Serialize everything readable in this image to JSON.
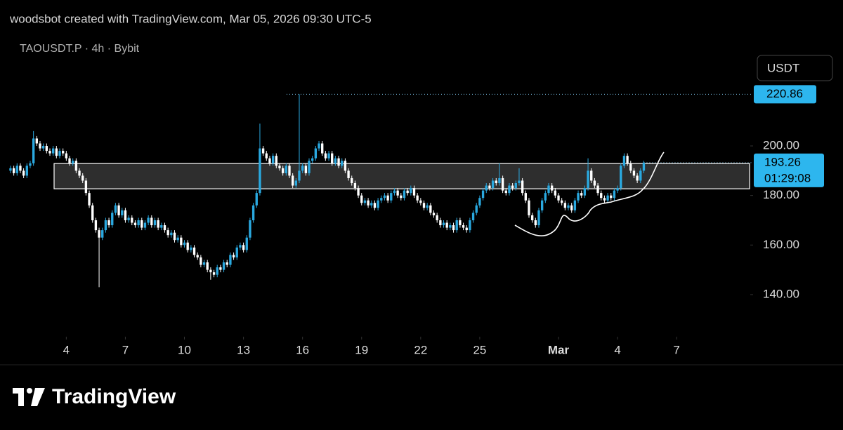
{
  "header": {
    "byline": "woodsbot created with TradingView.com, Mar 05, 2026 09:30 UTC-5",
    "symbol": "TAOUSDT.P · 4h · Bybit",
    "currency_button": "USDT"
  },
  "chart_data": {
    "type": "candlestick",
    "up_color": "#2aa9e0",
    "down_color": "#ffffff",
    "ylim": [
      123,
      232
    ],
    "xlim": [
      -3.2,
      224.8
    ],
    "yticks": [
      {
        "value": 140,
        "label": "140.00"
      },
      {
        "value": 160,
        "label": "160.00"
      },
      {
        "value": 180,
        "label": "180.00"
      },
      {
        "value": 200,
        "label": "200.00"
      }
    ],
    "xticks": [
      {
        "value": 17,
        "label": "4"
      },
      {
        "value": 35,
        "label": "7"
      },
      {
        "value": 53,
        "label": "10"
      },
      {
        "value": 71,
        "label": "13"
      },
      {
        "value": 89,
        "label": "16"
      },
      {
        "value": 107,
        "label": "19"
      },
      {
        "value": 125,
        "label": "22"
      },
      {
        "value": 143,
        "label": "25"
      },
      {
        "value": 167,
        "label": "Mar"
      },
      {
        "value": 185,
        "label": "4"
      },
      {
        "value": 203,
        "label": "7"
      }
    ],
    "high_marker": {
      "value": 220.86,
      "label": "220.86"
    },
    "last_price": {
      "value": 193.26,
      "label": "193.26"
    },
    "countdown": "01:29:08",
    "zone": [
      182.7,
      192.9
    ],
    "candles": [
      [
        190,
        192,
        189,
        191
      ],
      [
        191,
        192,
        188,
        189
      ],
      [
        189,
        193,
        188,
        192
      ],
      [
        192,
        193,
        189,
        190
      ],
      [
        190,
        191,
        187,
        188
      ],
      [
        188,
        193,
        187,
        192
      ],
      [
        192,
        194,
        191,
        193
      ],
      [
        193,
        206,
        192,
        203
      ],
      [
        203,
        204,
        200,
        201
      ],
      [
        201,
        202,
        198,
        199
      ],
      [
        199,
        201,
        198,
        200
      ],
      [
        200,
        201,
        197,
        198
      ],
      [
        198,
        199,
        196,
        197
      ],
      [
        197,
        200,
        196,
        199
      ],
      [
        199,
        200,
        195,
        196
      ],
      [
        196,
        199,
        195,
        198
      ],
      [
        198,
        199,
        196,
        197
      ],
      [
        197,
        198,
        194,
        195
      ],
      [
        195,
        196,
        192,
        193
      ],
      [
        193,
        195,
        192,
        194
      ],
      [
        194,
        195,
        189,
        190
      ],
      [
        190,
        191,
        187,
        188
      ],
      [
        188,
        189,
        185,
        186
      ],
      [
        186,
        187,
        180,
        181
      ],
      [
        181,
        182,
        175,
        176
      ],
      [
        176,
        177,
        169,
        170
      ],
      [
        170,
        171,
        165,
        166
      ],
      [
        166,
        167,
        143,
        163
      ],
      [
        163,
        167,
        162,
        166
      ],
      [
        166,
        171,
        165,
        170
      ],
      [
        170,
        171,
        167,
        168
      ],
      [
        168,
        174,
        167,
        173
      ],
      [
        173,
        177,
        172,
        176
      ],
      [
        176,
        177,
        171,
        172
      ],
      [
        172,
        175,
        171,
        174
      ],
      [
        174,
        175,
        169,
        170
      ],
      [
        170,
        172,
        169,
        171
      ],
      [
        171,
        172,
        168,
        169
      ],
      [
        169,
        170,
        167,
        168
      ],
      [
        168,
        171,
        167,
        170
      ],
      [
        170,
        171,
        166,
        167
      ],
      [
        167,
        170,
        166,
        169
      ],
      [
        169,
        172,
        168,
        171
      ],
      [
        171,
        172,
        167,
        168
      ],
      [
        168,
        171,
        167,
        170
      ],
      [
        170,
        171,
        166,
        167
      ],
      [
        167,
        169,
        166,
        168
      ],
      [
        168,
        169,
        165,
        166
      ],
      [
        166,
        167,
        163,
        164
      ],
      [
        164,
        166,
        163,
        165
      ],
      [
        165,
        166,
        161,
        162
      ],
      [
        162,
        164,
        161,
        163
      ],
      [
        163,
        164,
        159,
        160
      ],
      [
        160,
        162,
        159,
        161
      ],
      [
        161,
        162,
        157,
        158
      ],
      [
        158,
        160,
        157,
        159
      ],
      [
        159,
        160,
        155,
        156
      ],
      [
        156,
        157,
        154,
        155
      ],
      [
        155,
        156,
        151,
        152
      ],
      [
        152,
        154,
        151,
        153
      ],
      [
        153,
        154,
        149,
        150
      ],
      [
        150,
        151,
        146,
        149
      ],
      [
        149,
        150,
        147,
        148
      ],
      [
        148,
        152,
        147,
        151
      ],
      [
        151,
        152,
        149,
        150
      ],
      [
        150,
        154,
        149,
        153
      ],
      [
        153,
        154,
        151,
        152
      ],
      [
        152,
        157,
        151,
        156
      ],
      [
        156,
        157,
        154,
        155
      ],
      [
        155,
        160,
        154,
        159
      ],
      [
        159,
        161,
        158,
        160
      ],
      [
        160,
        161,
        157,
        158
      ],
      [
        158,
        164,
        157,
        163
      ],
      [
        163,
        171,
        162,
        170
      ],
      [
        170,
        177,
        169,
        176
      ],
      [
        176,
        182,
        175,
        181
      ],
      [
        181,
        209,
        180,
        199
      ],
      [
        199,
        200,
        196,
        197
      ],
      [
        197,
        198,
        194,
        195
      ],
      [
        195,
        196,
        192,
        193
      ],
      [
        193,
        197,
        192,
        196
      ],
      [
        196,
        197,
        191,
        192
      ],
      [
        192,
        193,
        190,
        191
      ],
      [
        191,
        192,
        188,
        189
      ],
      [
        189,
        193,
        188,
        192
      ],
      [
        192,
        193,
        187,
        188
      ],
      [
        188,
        189,
        183,
        184
      ],
      [
        184,
        187,
        183,
        186
      ],
      [
        186,
        220.86,
        185,
        190
      ],
      [
        190,
        193,
        189,
        192
      ],
      [
        192,
        193,
        188,
        189
      ],
      [
        189,
        195,
        188,
        194
      ],
      [
        194,
        196,
        193,
        195
      ],
      [
        195,
        200,
        194,
        199
      ],
      [
        199,
        202,
        198,
        201
      ],
      [
        201,
        202,
        196,
        197
      ],
      [
        197,
        198,
        194,
        195
      ],
      [
        195,
        198,
        194,
        197
      ],
      [
        197,
        198,
        192,
        193
      ],
      [
        193,
        196,
        192,
        195
      ],
      [
        195,
        196,
        191,
        192
      ],
      [
        192,
        195,
        191,
        194
      ],
      [
        194,
        195,
        189,
        190
      ],
      [
        190,
        191,
        186,
        187
      ],
      [
        187,
        188,
        184,
        185
      ],
      [
        185,
        186,
        182,
        183
      ],
      [
        183,
        184,
        179,
        180
      ],
      [
        180,
        181,
        176,
        177
      ],
      [
        177,
        179,
        176,
        178
      ],
      [
        178,
        179,
        175,
        176
      ],
      [
        176,
        178,
        175,
        177
      ],
      [
        177,
        178,
        174,
        175
      ],
      [
        175,
        179,
        174,
        178
      ],
      [
        178,
        180,
        177,
        179
      ],
      [
        179,
        181,
        178,
        180
      ],
      [
        180,
        181,
        177,
        178
      ],
      [
        178,
        182,
        177,
        181
      ],
      [
        181,
        183,
        180,
        182
      ],
      [
        182,
        183,
        179,
        180
      ],
      [
        180,
        181,
        178,
        179
      ],
      [
        179,
        183,
        178,
        182
      ],
      [
        182,
        183,
        180,
        181
      ],
      [
        181,
        184,
        180,
        183
      ],
      [
        183,
        184,
        179,
        180
      ],
      [
        180,
        181,
        177,
        178
      ],
      [
        178,
        179,
        176,
        177
      ],
      [
        177,
        178,
        174,
        175
      ],
      [
        175,
        177,
        174,
        176
      ],
      [
        176,
        177,
        172,
        173
      ],
      [
        173,
        174,
        171,
        172
      ],
      [
        172,
        173,
        169,
        170
      ],
      [
        170,
        171,
        167,
        168
      ],
      [
        168,
        170,
        167,
        169
      ],
      [
        169,
        170,
        166,
        167
      ],
      [
        167,
        169,
        166,
        168
      ],
      [
        168,
        169,
        165,
        166
      ],
      [
        166,
        171,
        165,
        170
      ],
      [
        170,
        171,
        167,
        168
      ],
      [
        168,
        169,
        166,
        167
      ],
      [
        167,
        168,
        165,
        166
      ],
      [
        166,
        171,
        165,
        170
      ],
      [
        170,
        174,
        169,
        173
      ],
      [
        173,
        177,
        172,
        176
      ],
      [
        176,
        180,
        175,
        179
      ],
      [
        179,
        183,
        178,
        182
      ],
      [
        182,
        185,
        181,
        184
      ],
      [
        184,
        185,
        182,
        183
      ],
      [
        183,
        187,
        182,
        186
      ],
      [
        186,
        187,
        184,
        185
      ],
      [
        185,
        193,
        184,
        187
      ],
      [
        187,
        188,
        181,
        182
      ],
      [
        182,
        183,
        180,
        181
      ],
      [
        181,
        185,
        180,
        184
      ],
      [
        184,
        185,
        182,
        183
      ],
      [
        183,
        186,
        182,
        185
      ],
      [
        185,
        191,
        184,
        186
      ],
      [
        186,
        187,
        180,
        181
      ],
      [
        181,
        182,
        177,
        178
      ],
      [
        178,
        179,
        171,
        172
      ],
      [
        172,
        173,
        169,
        170
      ],
      [
        170,
        171,
        167,
        168
      ],
      [
        168,
        175,
        167,
        174
      ],
      [
        174,
        179,
        173,
        178
      ],
      [
        178,
        182,
        177,
        181
      ],
      [
        181,
        185,
        180,
        184
      ],
      [
        184,
        185,
        181,
        182
      ],
      [
        182,
        183,
        179,
        180
      ],
      [
        180,
        181,
        177,
        178
      ],
      [
        178,
        179,
        176,
        177
      ],
      [
        177,
        178,
        174,
        175
      ],
      [
        175,
        177,
        174,
        176
      ],
      [
        176,
        177,
        173,
        174
      ],
      [
        174,
        179,
        173,
        178
      ],
      [
        178,
        182,
        177,
        181
      ],
      [
        181,
        182,
        179,
        180
      ],
      [
        180,
        184,
        179,
        183
      ],
      [
        183,
        195,
        182,
        190
      ],
      [
        190,
        191,
        185,
        186
      ],
      [
        186,
        187,
        183,
        184
      ],
      [
        184,
        185,
        180,
        181
      ],
      [
        181,
        182,
        178,
        179
      ],
      [
        179,
        180,
        177,
        178
      ],
      [
        178,
        181,
        177,
        180
      ],
      [
        180,
        181,
        178,
        179
      ],
      [
        179,
        183,
        178,
        182
      ],
      [
        182,
        184,
        181,
        183
      ],
      [
        183,
        193,
        182,
        192
      ],
      [
        192,
        197,
        191,
        196
      ],
      [
        196,
        197,
        192,
        193
      ],
      [
        193,
        194,
        189,
        190
      ],
      [
        190,
        191,
        187,
        188
      ],
      [
        188,
        189,
        185,
        186
      ],
      [
        186,
        191,
        185,
        190
      ],
      [
        190,
        194,
        189,
        193.26
      ]
    ]
  },
  "footer": {
    "logo_text": "TradingView"
  }
}
